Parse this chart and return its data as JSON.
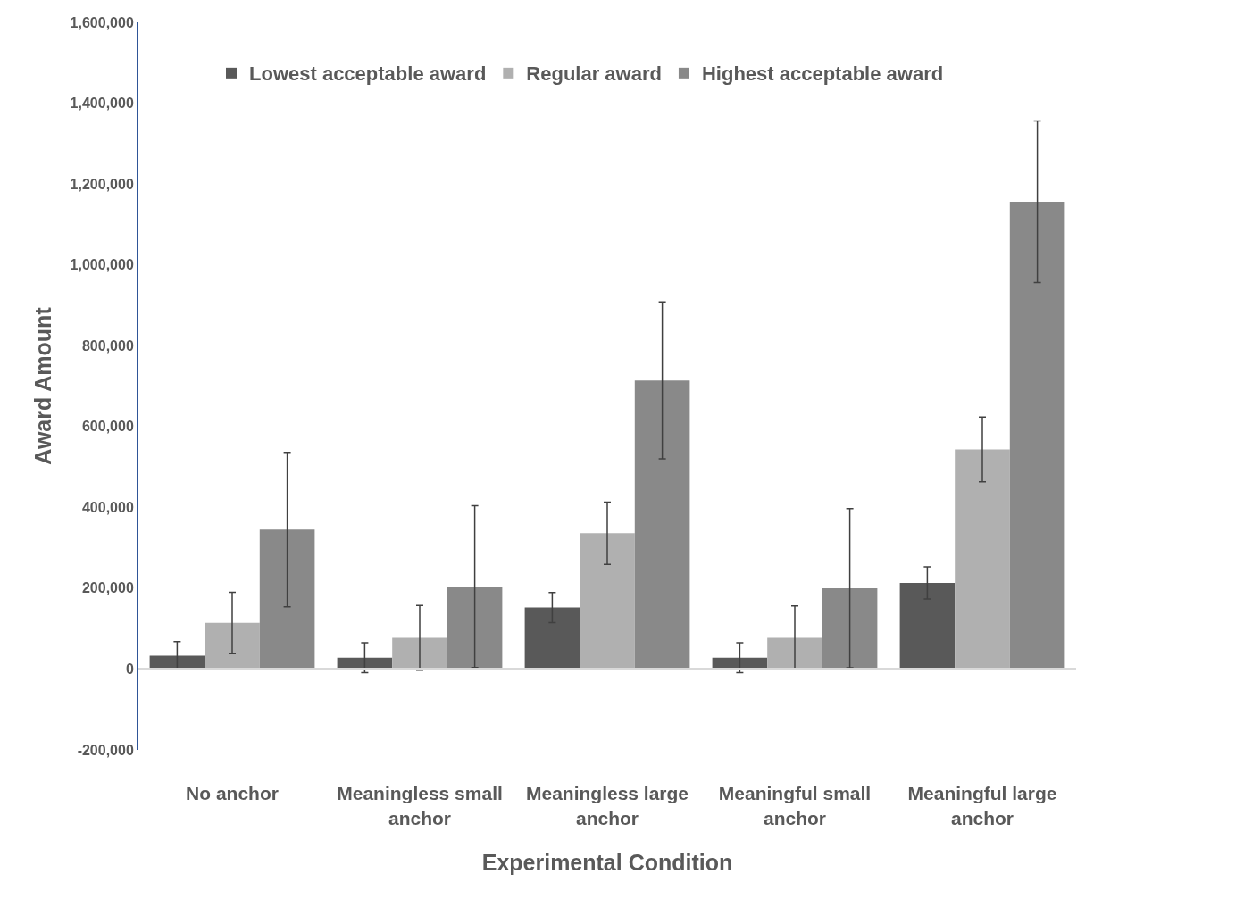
{
  "chart_data": {
    "type": "bar",
    "xlabel": "Experimental Condition",
    "ylabel": "Award Amount",
    "categories": [
      "No anchor",
      "Meaningless small anchor",
      "Meaningless large anchor",
      "Meaningful small anchor",
      "Meaningful large anchor"
    ],
    "series": [
      {
        "name": "Lowest acceptable award",
        "color": "#595959",
        "values": [
          33000,
          28000,
          152000,
          28000,
          213000
        ],
        "errors": [
          35000,
          37000,
          37000,
          37000,
          40000
        ]
      },
      {
        "name": "Regular award",
        "color": "#b0b0b0",
        "values": [
          114000,
          77000,
          336000,
          77000,
          543000
        ],
        "errors": [
          76000,
          80000,
          77000,
          79000,
          80000
        ]
      },
      {
        "name": "Highest acceptable award",
        "color": "#898989",
        "values": [
          345000,
          204000,
          714000,
          200000,
          1156000
        ],
        "errors": [
          191000,
          200000,
          194000,
          197000,
          200000
        ]
      }
    ],
    "ylim": [
      -200000,
      1600000
    ],
    "yticks": [
      {
        "value": -200000,
        "label": "-200,000"
      },
      0,
      {
        "value": 200000,
        "label": "200,000"
      },
      {
        "value": 400000,
        "label": "400,000"
      },
      {
        "value": 600000,
        "label": "600,000"
      },
      {
        "value": 800000,
        "label": "800,000"
      },
      {
        "value": 1000000,
        "label": "1,000,000"
      },
      {
        "value": 1200000,
        "label": "1,200,000"
      },
      {
        "value": 1400000,
        "label": "1,400,000"
      },
      {
        "value": 1600000,
        "label": "1,600,000"
      }
    ],
    "legend": "top"
  }
}
